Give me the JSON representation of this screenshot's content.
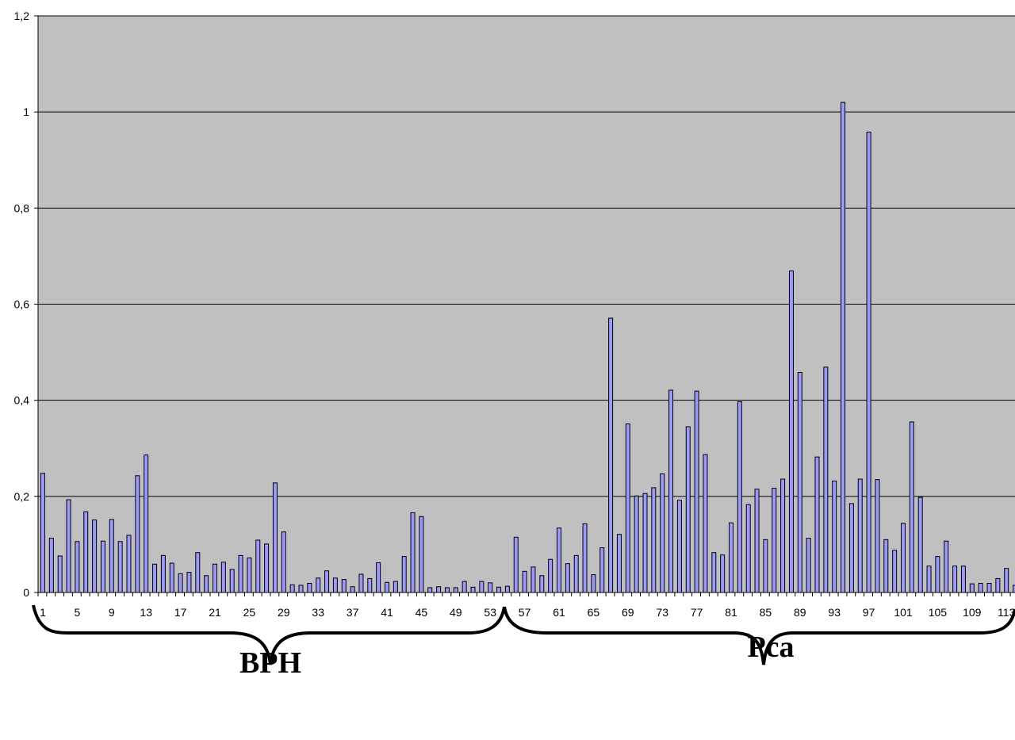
{
  "chart_data": {
    "type": "bar",
    "title": "",
    "xlabel": "",
    "ylabel": "",
    "ylim": [
      0,
      1.2
    ],
    "y_ticks": [
      "0",
      "0,2",
      "0,4",
      "0,6",
      "0,8",
      "1",
      "1,2"
    ],
    "y_tick_values": [
      0,
      0.2,
      0.4,
      0.6,
      0.8,
      1.0,
      1.2
    ],
    "x_tick_labels": [
      "1",
      "5",
      "9",
      "13",
      "17",
      "21",
      "25",
      "29",
      "33",
      "37",
      "41",
      "45",
      "49",
      "53",
      "57",
      "61",
      "65",
      "69",
      "73",
      "77",
      "81",
      "85",
      "89",
      "93",
      "97",
      "101",
      "105",
      "109",
      "113"
    ],
    "grid": "horizontal",
    "legend": "none",
    "plot_background": "#c0c0c0",
    "bar_color": "#9999ff",
    "bar_edge_color": "#000000",
    "categories": [
      1,
      2,
      3,
      4,
      5,
      6,
      7,
      8,
      9,
      10,
      11,
      12,
      13,
      14,
      15,
      16,
      17,
      18,
      19,
      20,
      21,
      22,
      23,
      24,
      25,
      26,
      27,
      28,
      29,
      30,
      31,
      32,
      33,
      34,
      35,
      36,
      37,
      38,
      39,
      40,
      41,
      42,
      43,
      44,
      45,
      46,
      47,
      48,
      49,
      50,
      51,
      52,
      53,
      54,
      55,
      56,
      57,
      58,
      59,
      60,
      61,
      62,
      63,
      64,
      65,
      66,
      67,
      68,
      69,
      70,
      71,
      72,
      73,
      74,
      75,
      76,
      77,
      78,
      79,
      80,
      81,
      82,
      83,
      84,
      85,
      86,
      87,
      88,
      89,
      90,
      91,
      92,
      93,
      94,
      95,
      96,
      97,
      98,
      99,
      100,
      101,
      102,
      103,
      104,
      105,
      106,
      107,
      108,
      109,
      110,
      111,
      112,
      113,
      114
    ],
    "values": [
      0.248,
      0.113,
      0.076,
      0.193,
      0.106,
      0.168,
      0.151,
      0.107,
      0.152,
      0.106,
      0.119,
      0.243,
      0.286,
      0.059,
      0.077,
      0.061,
      0.039,
      0.042,
      0.083,
      0.035,
      0.059,
      0.063,
      0.048,
      0.077,
      0.072,
      0.109,
      0.101,
      0.228,
      0.126,
      0.016,
      0.015,
      0.019,
      0.03,
      0.045,
      0.03,
      0.027,
      0.012,
      0.038,
      0.029,
      0.062,
      0.021,
      0.023,
      0.075,
      0.166,
      0.158,
      0.01,
      0.012,
      0.01,
      0.01,
      0.023,
      0.011,
      0.023,
      0.02,
      0.011,
      0.013,
      0.115,
      0.044,
      0.053,
      0.035,
      0.069,
      0.134,
      0.06,
      0.077,
      0.143,
      0.037,
      0.093,
      0.571,
      0.121,
      0.351,
      0.201,
      0.206,
      0.218,
      0.247,
      0.421,
      0.192,
      0.345,
      0.419,
      0.287,
      0.083,
      0.078,
      0.145,
      0.397,
      0.183,
      0.215,
      0.11,
      0.217,
      0.236,
      0.669,
      0.458,
      0.113,
      0.282,
      0.469,
      0.232,
      1.02,
      0.185,
      0.236,
      0.958,
      0.235,
      0.11,
      0.088,
      0.144,
      0.355,
      0.198,
      0.055,
      0.075,
      0.107,
      0.055,
      0.055,
      0.018,
      0.019,
      0.019,
      0.029,
      0.05,
      0.015
    ],
    "groups": [
      {
        "label": "BPH",
        "from": 1,
        "to": 55
      },
      {
        "label": "Pca",
        "from": 56,
        "to": 114
      }
    ]
  }
}
